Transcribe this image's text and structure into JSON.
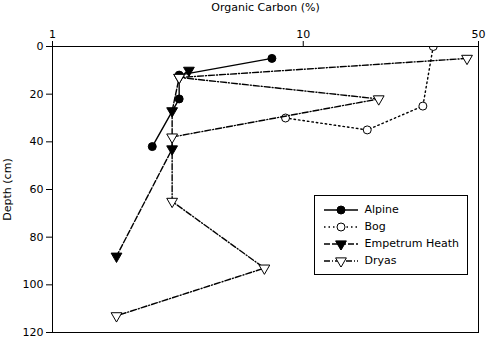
{
  "chart_data": {
    "type": "line",
    "xlabel": "Organic Carbon (%)",
    "ylabel": "Depth (cm)",
    "log": "x",
    "xlim": [
      1,
      50
    ],
    "xticks": [
      1,
      10,
      50
    ],
    "ylim": [
      120,
      0
    ],
    "yticks": [
      0,
      20,
      40,
      60,
      80,
      100,
      120
    ],
    "grid": false,
    "legend": "lower right",
    "series": [
      {
        "name": "Alpine",
        "color": "black",
        "marker": "circle",
        "line_style": "solid",
        "x": [
          7.5,
          3.2,
          3.2,
          2.5
        ],
        "values": [
          5,
          12,
          22,
          42
        ]
      },
      {
        "name": "Bog",
        "color": "black",
        "marker": "open-circle",
        "line_style": "dotted",
        "x": [
          33.0,
          30.0,
          18.0,
          8.5
        ],
        "values": [
          0,
          25,
          35,
          30
        ]
      },
      {
        "name": "Empetrum Heath",
        "color": "black",
        "marker": "triangle-down",
        "line_style": "dashed",
        "x": [
          3.5,
          3.2,
          3.0,
          3.0,
          1.8
        ],
        "values": [
          10,
          13,
          27,
          43,
          88
        ]
      },
      {
        "name": "Dryas",
        "color": "black",
        "marker": "open-triangle-down",
        "line_style": "dashdot",
        "x": [
          45.0,
          3.2,
          20.0,
          3.0,
          3.0,
          7.0,
          1.8
        ],
        "values": [
          5,
          13,
          22,
          38,
          65,
          93,
          113
        ]
      }
    ]
  }
}
